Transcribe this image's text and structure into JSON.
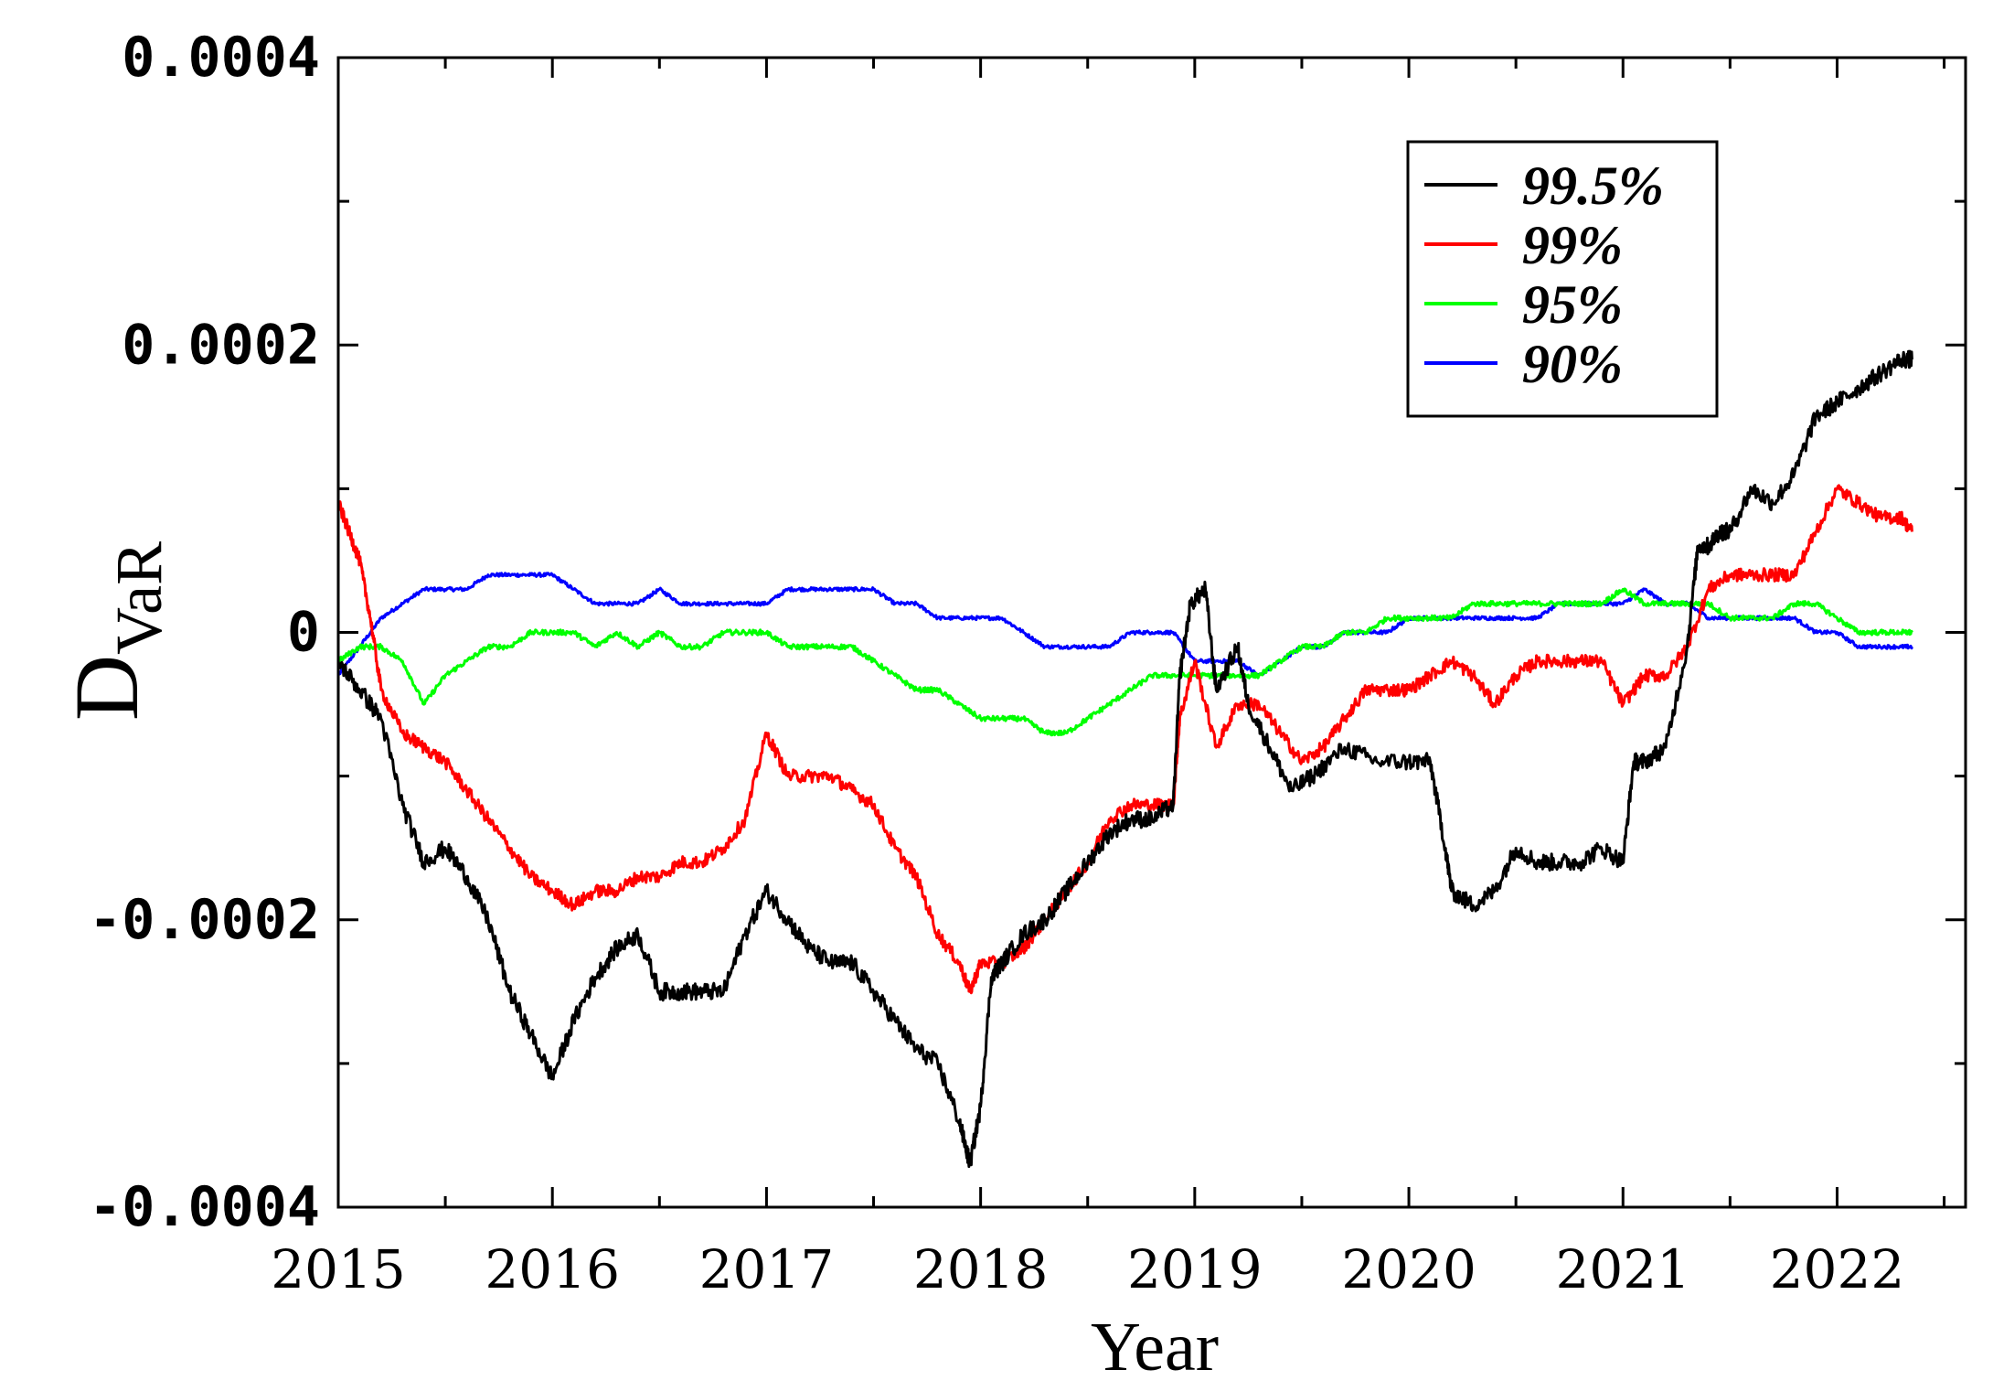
{
  "chart_data": {
    "type": "line",
    "xlabel": "Year",
    "ylabel": "D",
    "ylabel_subscript": "VaR",
    "xlim": [
      2015.0,
      2022.6
    ],
    "ylim": [
      -0.0004,
      0.0004
    ],
    "xticks": [
      2015,
      2016,
      2017,
      2018,
      2019,
      2020,
      2021,
      2022
    ],
    "xtick_labels": [
      "2015",
      "2016",
      "2017",
      "2018",
      "2019",
      "2020",
      "2021",
      "2022"
    ],
    "yticks": [
      -0.0004,
      -0.0002,
      0,
      0.0002,
      0.0004
    ],
    "ytick_labels": [
      "-0.0004",
      "-0.0002",
      "0",
      "0.0002",
      "0.0004"
    ],
    "grid": false,
    "legend_position": "top-right",
    "series": [
      {
        "name": "99.5%",
        "color": "#000000",
        "x": [
          2015.0,
          2015.1,
          2015.2,
          2015.3,
          2015.4,
          2015.5,
          2015.6,
          2015.7,
          2015.8,
          2015.9,
          2016.0,
          2016.1,
          2016.2,
          2016.3,
          2016.4,
          2016.5,
          2016.6,
          2016.7,
          2016.8,
          2016.9,
          2017.0,
          2017.1,
          2017.2,
          2017.3,
          2017.4,
          2017.5,
          2017.6,
          2017.7,
          2017.8,
          2017.9,
          2017.95,
          2018.0,
          2018.05,
          2018.1,
          2018.2,
          2018.3,
          2018.4,
          2018.5,
          2018.6,
          2018.7,
          2018.8,
          2018.9,
          2018.93,
          2018.98,
          2019.05,
          2019.1,
          2019.2,
          2019.25,
          2019.35,
          2019.45,
          2019.55,
          2019.7,
          2019.85,
          2020.0,
          2020.1,
          2020.17,
          2020.2,
          2020.3,
          2020.4,
          2020.5,
          2020.6,
          2020.7,
          2020.8,
          2020.9,
          2021.0,
          2021.05,
          2021.1,
          2021.2,
          2021.3,
          2021.35,
          2021.4,
          2021.45,
          2021.5,
          2021.6,
          2021.7,
          2021.8,
          2021.9,
          2022.0,
          2022.1,
          2022.2,
          2022.3,
          2022.35
        ],
        "y": [
          -2e-05,
          -4e-05,
          -6e-05,
          -0.00012,
          -0.00016,
          -0.00015,
          -0.00017,
          -0.0002,
          -0.00025,
          -0.00028,
          -0.00031,
          -0.00027,
          -0.00024,
          -0.00022,
          -0.00021,
          -0.00025,
          -0.00025,
          -0.00025,
          -0.00025,
          -0.00021,
          -0.00018,
          -0.0002,
          -0.00022,
          -0.00023,
          -0.00023,
          -0.00025,
          -0.00027,
          -0.00029,
          -0.0003,
          -0.00034,
          -0.00037,
          -0.00033,
          -0.00024,
          -0.00023,
          -0.00021,
          -0.0002,
          -0.00018,
          -0.00016,
          -0.00014,
          -0.00013,
          -0.00013,
          -0.00012,
          -3e-05,
          2e-05,
          3e-05,
          -4e-05,
          -1e-05,
          -5e-05,
          -8e-05,
          -0.00011,
          -0.0001,
          -8e-05,
          -9e-05,
          -9e-05,
          -9e-05,
          -0.00015,
          -0.00018,
          -0.00019,
          -0.00018,
          -0.00015,
          -0.00016,
          -0.00016,
          -0.00016,
          -0.00015,
          -0.00016,
          -9e-05,
          -9e-05,
          -8e-05,
          -1e-05,
          6e-05,
          6e-05,
          7e-05,
          7e-05,
          0.0001,
          9e-05,
          0.00011,
          0.00015,
          0.00016,
          0.00017,
          0.00018,
          0.00019,
          0.00019
        ]
      },
      {
        "name": "99%",
        "color": "#ff0000",
        "x": [
          2015.0,
          2015.05,
          2015.1,
          2015.15,
          2015.2,
          2015.3,
          2015.4,
          2015.5,
          2015.6,
          2015.7,
          2015.8,
          2015.9,
          2016.0,
          2016.1,
          2016.2,
          2016.3,
          2016.4,
          2016.5,
          2016.6,
          2016.7,
          2016.8,
          2016.9,
          2017.0,
          2017.1,
          2017.2,
          2017.3,
          2017.4,
          2017.5,
          2017.6,
          2017.7,
          2017.8,
          2017.9,
          2017.95,
          2018.0,
          2018.1,
          2018.2,
          2018.3,
          2018.4,
          2018.5,
          2018.6,
          2018.7,
          2018.8,
          2018.9,
          2018.93,
          2019.0,
          2019.1,
          2019.2,
          2019.3,
          2019.4,
          2019.5,
          2019.6,
          2019.7,
          2019.8,
          2019.9,
          2020.0,
          2020.1,
          2020.2,
          2020.3,
          2020.4,
          2020.5,
          2020.6,
          2020.7,
          2020.8,
          2020.9,
          2021.0,
          2021.1,
          2021.2,
          2021.3,
          2021.4,
          2021.5,
          2021.6,
          2021.7,
          2021.8,
          2021.9,
          2022.0,
          2022.1,
          2022.2,
          2022.3,
          2022.35
        ],
        "y": [
          9e-05,
          7e-05,
          5e-05,
          1e-05,
          -4e-05,
          -7e-05,
          -8e-05,
          -9e-05,
          -0.00011,
          -0.00013,
          -0.00015,
          -0.00017,
          -0.00018,
          -0.00019,
          -0.00018,
          -0.00018,
          -0.00017,
          -0.00017,
          -0.00016,
          -0.00016,
          -0.00015,
          -0.00013,
          -7e-05,
          -0.0001,
          -0.0001,
          -0.0001,
          -0.00011,
          -0.00012,
          -0.00015,
          -0.00017,
          -0.00021,
          -0.00023,
          -0.00025,
          -0.00023,
          -0.00023,
          -0.00022,
          -0.0002,
          -0.00018,
          -0.00016,
          -0.00013,
          -0.00012,
          -0.00012,
          -0.00012,
          -6e-05,
          -2e-05,
          -8e-05,
          -5e-05,
          -5e-05,
          -7e-05,
          -9e-05,
          -8e-05,
          -6e-05,
          -4e-05,
          -4e-05,
          -4e-05,
          -3e-05,
          -2e-05,
          -3e-05,
          -5e-05,
          -3e-05,
          -2e-05,
          -2e-05,
          -2e-05,
          -2e-05,
          -5e-05,
          -3e-05,
          -3e-05,
          -1e-05,
          3e-05,
          4e-05,
          4e-05,
          4e-05,
          4e-05,
          7e-05,
          0.0001,
          9e-05,
          8e-05,
          8e-05,
          7e-05
        ]
      },
      {
        "name": "95%",
        "color": "#00ff00",
        "x": [
          2015.0,
          2015.1,
          2015.2,
          2015.3,
          2015.4,
          2015.5,
          2015.6,
          2015.7,
          2015.8,
          2015.9,
          2016.0,
          2016.1,
          2016.2,
          2016.3,
          2016.4,
          2016.5,
          2016.6,
          2016.7,
          2016.8,
          2016.9,
          2017.0,
          2017.1,
          2017.2,
          2017.3,
          2017.4,
          2017.5,
          2017.6,
          2017.7,
          2017.8,
          2017.9,
          2018.0,
          2018.1,
          2018.2,
          2018.3,
          2018.4,
          2018.5,
          2018.6,
          2018.7,
          2018.8,
          2018.9,
          2019.0,
          2019.1,
          2019.2,
          2019.3,
          2019.4,
          2019.5,
          2019.6,
          2019.7,
          2019.8,
          2019.9,
          2020.0,
          2020.1,
          2020.2,
          2020.3,
          2020.4,
          2020.5,
          2020.6,
          2020.7,
          2020.8,
          2020.9,
          2021.0,
          2021.1,
          2021.2,
          2021.3,
          2021.4,
          2021.5,
          2021.6,
          2021.7,
          2021.8,
          2021.9,
          2022.0,
          2022.1,
          2022.2,
          2022.3,
          2022.35
        ],
        "y": [
          -2e-05,
          -1e-05,
          -1e-05,
          -2e-05,
          -5e-05,
          -3e-05,
          -2e-05,
          -1e-05,
          -1e-05,
          0,
          0,
          0,
          -1e-05,
          0,
          -1e-05,
          0,
          -1e-05,
          -1e-05,
          0,
          0,
          0,
          -1e-05,
          -1e-05,
          -1e-05,
          -1e-05,
          -2e-05,
          -3e-05,
          -4e-05,
          -4e-05,
          -5e-05,
          -6e-05,
          -6e-05,
          -6e-05,
          -7e-05,
          -7e-05,
          -6e-05,
          -5e-05,
          -4e-05,
          -3e-05,
          -3e-05,
          -3e-05,
          -3e-05,
          -3e-05,
          -3e-05,
          -2e-05,
          -1e-05,
          -1e-05,
          0,
          0,
          1e-05,
          1e-05,
          1e-05,
          1e-05,
          2e-05,
          2e-05,
          2e-05,
          2e-05,
          2e-05,
          2e-05,
          2e-05,
          3e-05,
          2e-05,
          2e-05,
          2e-05,
          2e-05,
          1e-05,
          1e-05,
          1e-05,
          2e-05,
          2e-05,
          1e-05,
          0,
          0,
          0,
          0
        ]
      },
      {
        "name": "90%",
        "color": "#0000ff",
        "x": [
          2015.0,
          2015.1,
          2015.2,
          2015.3,
          2015.4,
          2015.5,
          2015.6,
          2015.7,
          2015.8,
          2015.9,
          2016.0,
          2016.1,
          2016.2,
          2016.3,
          2016.4,
          2016.5,
          2016.6,
          2016.7,
          2016.8,
          2016.9,
          2017.0,
          2017.1,
          2017.2,
          2017.3,
          2017.4,
          2017.5,
          2017.6,
          2017.7,
          2017.8,
          2017.9,
          2018.0,
          2018.1,
          2018.2,
          2018.3,
          2018.4,
          2018.5,
          2018.6,
          2018.7,
          2018.8,
          2018.9,
          2019.0,
          2019.1,
          2019.2,
          2019.3,
          2019.4,
          2019.5,
          2019.6,
          2019.7,
          2019.8,
          2019.9,
          2020.0,
          2020.1,
          2020.2,
          2020.3,
          2020.4,
          2020.5,
          2020.6,
          2020.7,
          2020.8,
          2020.9,
          2021.0,
          2021.1,
          2021.2,
          2021.3,
          2021.4,
          2021.5,
          2021.6,
          2021.7,
          2021.8,
          2021.9,
          2022.0,
          2022.1,
          2022.2,
          2022.3,
          2022.35
        ],
        "y": [
          -3e-05,
          -1e-05,
          1e-05,
          2e-05,
          3e-05,
          3e-05,
          3e-05,
          4e-05,
          4e-05,
          4e-05,
          4e-05,
          3e-05,
          2e-05,
          2e-05,
          2e-05,
          3e-05,
          2e-05,
          2e-05,
          2e-05,
          2e-05,
          2e-05,
          3e-05,
          3e-05,
          3e-05,
          3e-05,
          3e-05,
          2e-05,
          2e-05,
          1e-05,
          1e-05,
          1e-05,
          1e-05,
          0,
          -1e-05,
          -1e-05,
          -1e-05,
          -1e-05,
          0,
          0,
          0,
          -2e-05,
          -2e-05,
          -2e-05,
          -3e-05,
          -2e-05,
          -1e-05,
          -1e-05,
          0,
          0,
          0,
          1e-05,
          1e-05,
          1e-05,
          1e-05,
          1e-05,
          1e-05,
          1e-05,
          2e-05,
          2e-05,
          2e-05,
          2e-05,
          3e-05,
          2e-05,
          2e-05,
          1e-05,
          1e-05,
          1e-05,
          1e-05,
          1e-05,
          0,
          0,
          -1e-05,
          -1e-05,
          -1e-05,
          -1e-05
        ]
      }
    ]
  }
}
